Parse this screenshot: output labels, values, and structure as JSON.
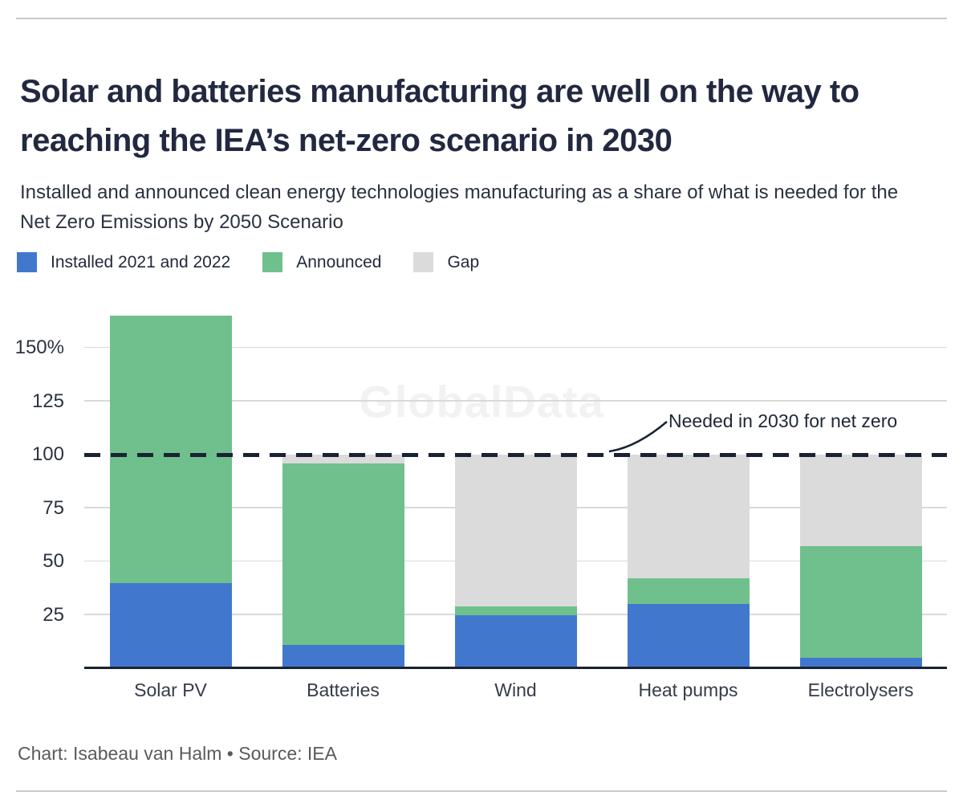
{
  "page": {
    "title": "Solar and batteries manufacturing are well on the way to reaching the IEA’s net-zero scenario in 2030",
    "subtitle": "Installed and announced clean energy technologies manufacturing as a share of what is needed for the Net Zero Emissions by 2050 Scenario",
    "footer": "Chart: Isabeau van Halm • Source: IEA",
    "watermark": "GlobalData"
  },
  "legend": {
    "items": [
      {
        "label": "Installed 2021 and 2022",
        "color": "#4277ce"
      },
      {
        "label": "Announced",
        "color": "#6fc08d"
      },
      {
        "label": "Gap",
        "color": "#dbdbdb"
      }
    ]
  },
  "colors": {
    "ink_navy": "#1a2233",
    "installed_blue": "#4277ce",
    "announced_green": "#6fc08d",
    "gap_gray": "#dbdbdb",
    "gridline": "#d9d9d9"
  },
  "chart_data": {
    "type": "bar",
    "stacked": true,
    "title": "Installed and announced clean energy technologies manufacturing as a share of what is needed for the Net Zero Emissions by 2050 Scenario",
    "categories": [
      "Solar PV",
      "Batteries",
      "Wind",
      "Heat pumps",
      "Electrolysers"
    ],
    "series": [
      {
        "name": "Installed 2021 and 2022",
        "color": "#4277ce",
        "values": [
          40,
          11,
          25,
          30,
          5
        ]
      },
      {
        "name": "Announced",
        "color": "#6fc08d",
        "values": [
          125,
          85,
          4,
          12,
          52
        ]
      },
      {
        "name": "Gap",
        "color": "#dbdbdb",
        "values": [
          0,
          4,
          71,
          58,
          43
        ]
      }
    ],
    "xlabel": "",
    "ylabel": "",
    "ylim": [
      0,
      170
    ],
    "unit": "%",
    "yticks": [
      {
        "value": 150,
        "label": "150%"
      },
      {
        "value": 125,
        "label": "125"
      },
      {
        "value": 100,
        "label": "100"
      },
      {
        "value": 75,
        "label": "75"
      },
      {
        "value": 50,
        "label": "50"
      },
      {
        "value": 25,
        "label": "25"
      }
    ],
    "gridlines": [
      25,
      50,
      75,
      125,
      150
    ],
    "grid": true,
    "legend_position": "top",
    "reference_line": {
      "value": 100,
      "label": "Needed in 2030 for net zero",
      "style": "dashed"
    }
  }
}
